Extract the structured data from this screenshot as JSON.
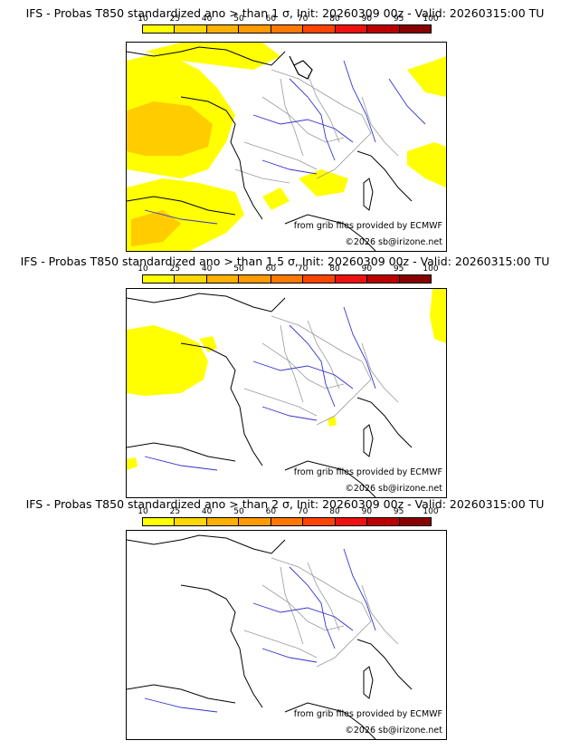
{
  "panels": [
    {
      "title": "IFS - Probas T850  standardized ano > than 1 σ, Init: 20260309 00z - Valid: 20260315:00 TU",
      "credit_source": "from grib files provided by ECMWF",
      "credit_copyright": "©2026 sb@irizone.net",
      "anomaly": "1 σ"
    },
    {
      "title": "IFS - Probas T850  standardized ano > than 1.5 σ, Init: 20260309 00z - Valid: 20260315:00 TU",
      "credit_source": "from grib files provided by ECMWF",
      "credit_copyright": "©2026 sb@irizone.net",
      "anomaly": "1.5 σ"
    },
    {
      "title": "IFS - Probas T850  standardized ano > than 2 σ, Init: 20260309 00z - Valid: 20260315:00 TU",
      "credit_source": "from grib files provided by ECMWF",
      "credit_copyright": "©2026 sb@irizone.net",
      "anomaly": "2 σ"
    }
  ],
  "colorbar": {
    "ticks": [
      "10",
      "25",
      "40",
      "50",
      "60",
      "70",
      "80",
      "90",
      "95",
      "100"
    ],
    "colors": [
      "#ffff00",
      "#ffd700",
      "#ffb000",
      "#ff9a00",
      "#ff7800",
      "#ff4400",
      "#ee1111",
      "#bb0000",
      "#880000"
    ]
  },
  "colors": {
    "coast": "#000000",
    "rivers": "#3333cc",
    "borders": "#9a9a9a",
    "prob_low": "#ffff00",
    "prob_mid": "#ffcc00",
    "prob_high": "#ffaa22"
  }
}
